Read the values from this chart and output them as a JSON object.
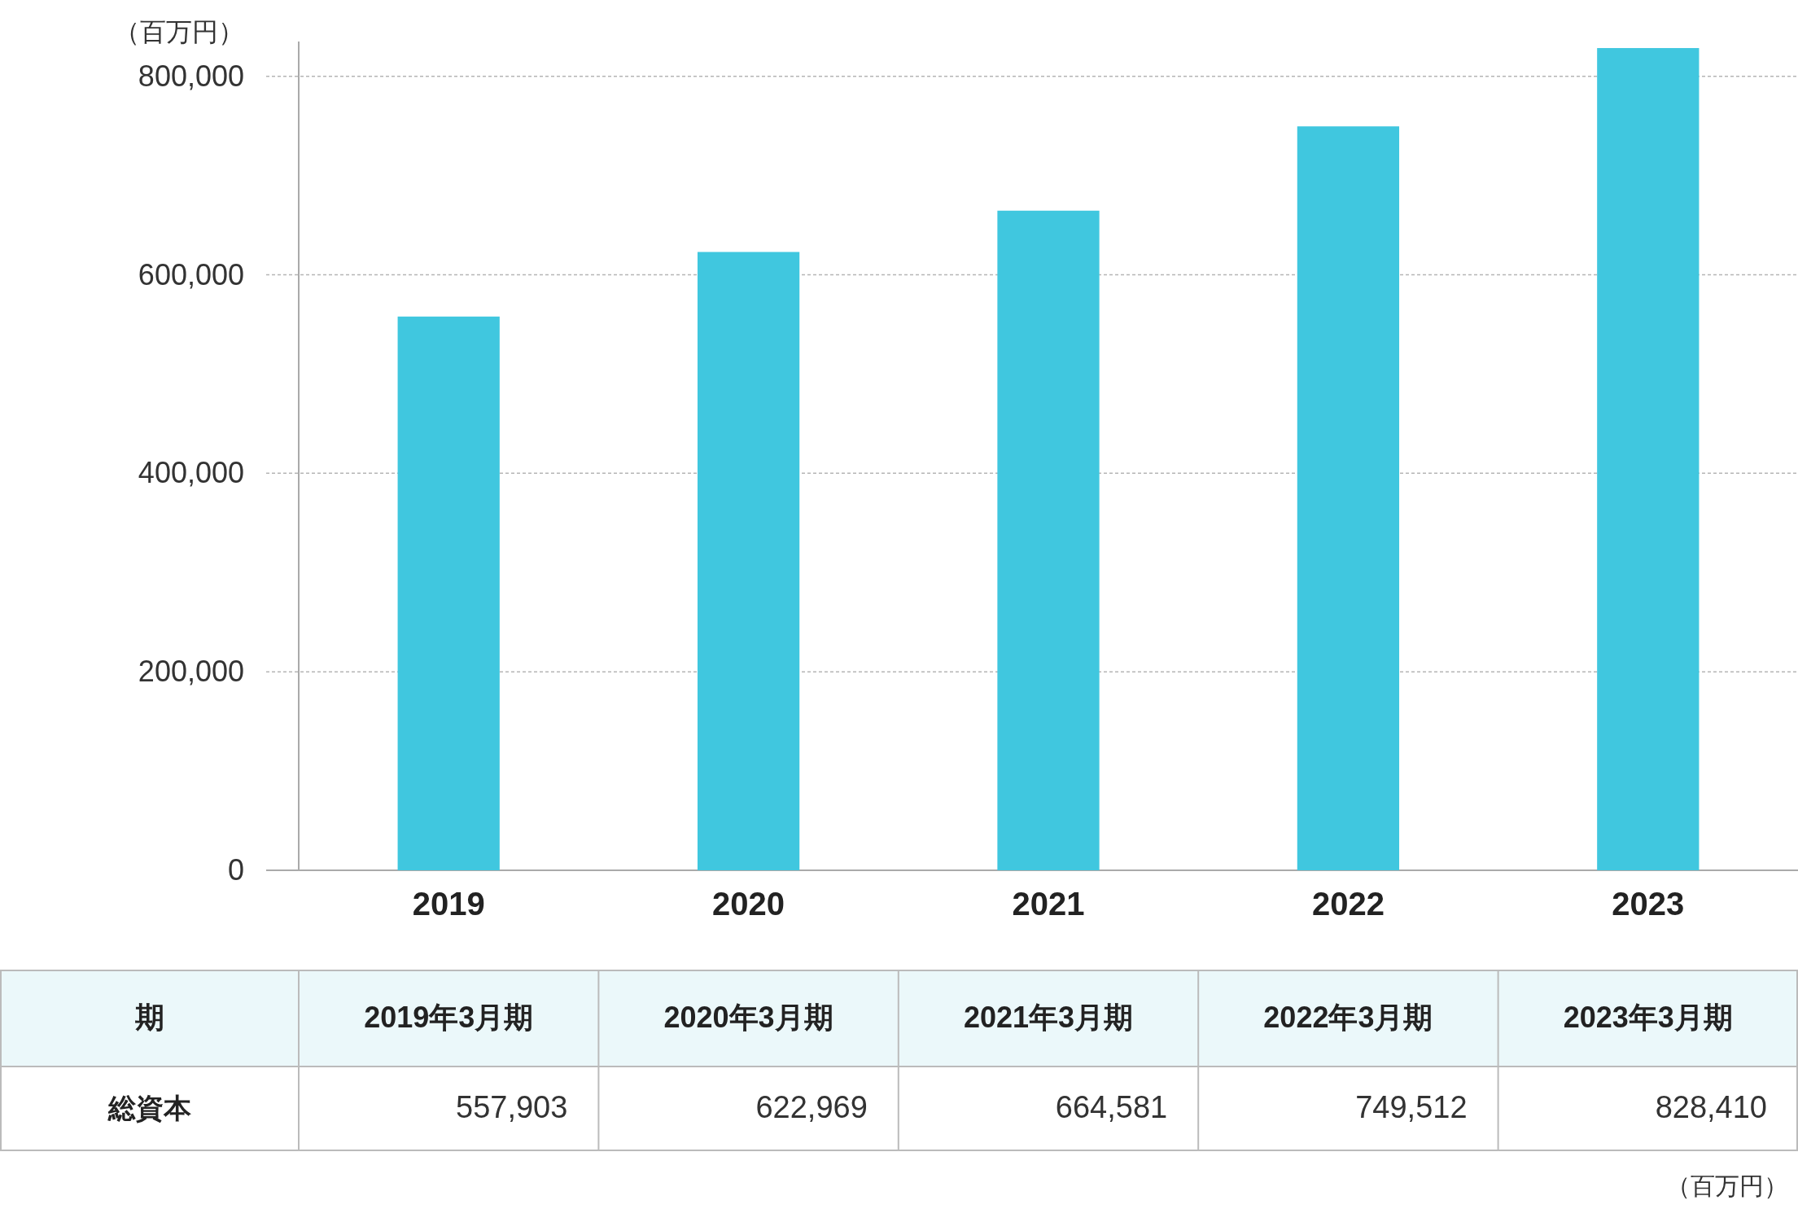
{
  "chart_data": {
    "type": "bar",
    "ylabel": "（百万円）",
    "categories": [
      "2019",
      "2020",
      "2021",
      "2022",
      "2023"
    ],
    "values": [
      557903,
      622969,
      664581,
      749512,
      828410
    ],
    "value_labels": [
      "557,903",
      "622,969",
      "664,581",
      "749,512",
      "828,410"
    ],
    "color": "#40c7df",
    "ylim": [
      0,
      835000
    ],
    "yticks": [
      {
        "value": 0,
        "label": "0"
      },
      {
        "value": 200000,
        "label": "200,000"
      },
      {
        "value": 400000,
        "label": "400,000"
      },
      {
        "value": 600000,
        "label": "600,000"
      },
      {
        "value": 800000,
        "label": "800,000"
      }
    ],
    "grid": "y",
    "annotations": [
      "期",
      "2019年3月期",
      "2020年3月期",
      "2021年3月期",
      "2022年3月期",
      "2023年3月期",
      "総資本",
      "（百万円）"
    ]
  }
}
